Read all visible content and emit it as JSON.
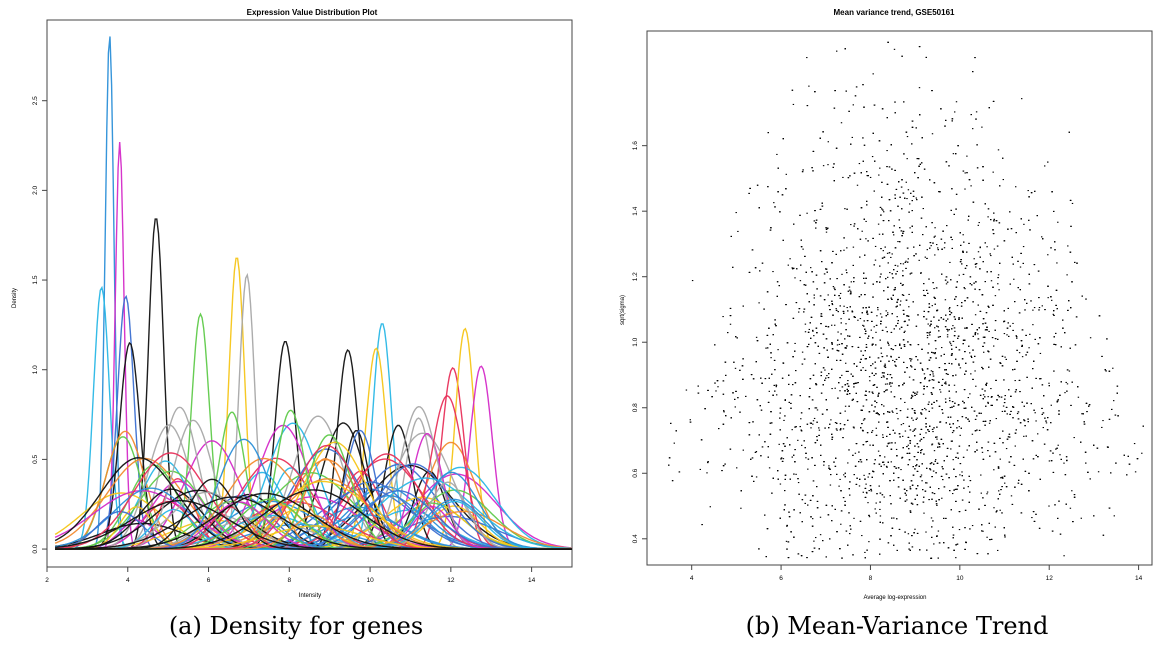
{
  "figure": {
    "caption_a": "(a) Density for genes",
    "caption_b": "(b) Mean-Variance Trend"
  },
  "chart_data": [
    {
      "type": "line",
      "title": "Expression Value Distribution Plot",
      "xlabel": "Intensity",
      "ylabel": "Density",
      "xlim": [
        2,
        15
      ],
      "ylim": [
        -0.1,
        2.95
      ],
      "xticks": [
        "2",
        "4",
        "6",
        "8",
        "10",
        "12",
        "14"
      ],
      "yticks": [
        "0.0",
        "0.5",
        "1.0",
        "1.5",
        "2.0",
        "2.5"
      ],
      "grid": false,
      "legend": "none",
      "series_count": 120,
      "notable_peaks": [
        {
          "x": 3.55,
          "y": 2.87,
          "color": "#2b8fd8"
        },
        {
          "x": 3.8,
          "y": 2.27,
          "color": "#d42ac8"
        },
        {
          "x": 3.35,
          "y": 1.46,
          "color": "#29b7e6"
        },
        {
          "x": 3.95,
          "y": 1.41,
          "color": "#3b6fd1"
        },
        {
          "x": 4.7,
          "y": 1.85,
          "color": "#111111"
        },
        {
          "x": 4.05,
          "y": 1.15,
          "color": "#111111"
        },
        {
          "x": 6.7,
          "y": 1.63,
          "color": "#f5c518"
        },
        {
          "x": 6.95,
          "y": 1.53,
          "color": "#a8a8a8"
        },
        {
          "x": 5.8,
          "y": 1.31,
          "color": "#5fca4a"
        },
        {
          "x": 7.9,
          "y": 1.16,
          "color": "#111111"
        },
        {
          "x": 9.45,
          "y": 1.11,
          "color": "#111111"
        },
        {
          "x": 10.3,
          "y": 1.26,
          "color": "#29b7e6"
        },
        {
          "x": 10.15,
          "y": 1.12,
          "color": "#f5c518"
        },
        {
          "x": 12.05,
          "y": 1.01,
          "color": "#e8305a"
        },
        {
          "x": 12.35,
          "y": 1.23,
          "color": "#f5c518"
        },
        {
          "x": 12.75,
          "y": 1.02,
          "color": "#d42ac8"
        },
        {
          "x": 10.7,
          "y": 0.69,
          "color": "#111111"
        },
        {
          "x": 11.2,
          "y": 0.73,
          "color": "#a8a8a8"
        }
      ]
    },
    {
      "type": "scatter",
      "title": "Mean variance trend, GSE50161",
      "xlabel": "Average log-expression",
      "ylabel": "sqrt(sigma)",
      "xlim": [
        3,
        14.3
      ],
      "ylim": [
        0.32,
        1.95
      ],
      "xticks": [
        "4",
        "6",
        "8",
        "10",
        "12",
        "14"
      ],
      "yticks": [
        "0.4",
        "0.6",
        "0.8",
        "1.0",
        "1.2",
        "1.4",
        "1.6"
      ],
      "grid": false,
      "legend": "none",
      "point_count": 5000,
      "mode": {
        "x": 8.8,
        "y": 0.8
      },
      "color": "#000000"
    }
  ]
}
